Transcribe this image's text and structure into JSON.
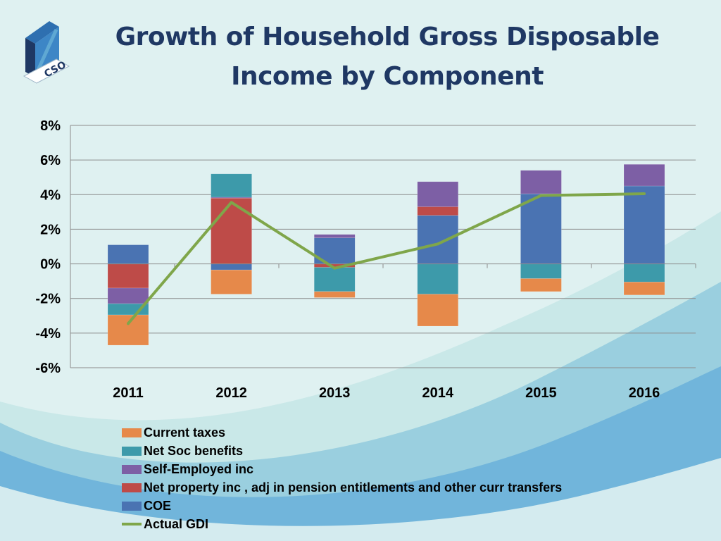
{
  "title_lines": [
    "Growth of Household Gross Disposable",
    "Income by Component"
  ],
  "logo": {
    "text": "CSO",
    "colors": [
      "#1f3864",
      "#2e6fb0",
      "#5fa8d3"
    ]
  },
  "colors": {
    "title": "#1f3864",
    "background": "#dff1f1",
    "gridline": "#8c8c8c"
  },
  "chart_data": {
    "type": "bar",
    "stacked": true,
    "categories": [
      "2011",
      "2012",
      "2013",
      "2014",
      "2015",
      "2016"
    ],
    "ylim": [
      -6,
      8
    ],
    "yticks": [
      8,
      6,
      4,
      2,
      0,
      -2,
      -4,
      -6
    ],
    "ytick_format": "%",
    "grid": true,
    "legend_position": "bottom",
    "series": [
      {
        "name": "COE",
        "color": "#4a73b2",
        "values": [
          1.1,
          -0.35,
          1.5,
          2.8,
          4.05,
          4.5
        ]
      },
      {
        "name": "Net property inc , adj in pension entitlements and other curr transfers",
        "color": "#be4b48",
        "values": [
          -1.4,
          3.8,
          -0.2,
          0.5,
          0.0,
          0.0
        ]
      },
      {
        "name": "Self-Employed inc",
        "color": "#7d5fa5",
        "values": [
          -0.9,
          0.05,
          0.2,
          1.45,
          1.35,
          1.25
        ]
      },
      {
        "name": "Net Soc benefits",
        "color": "#3d9aaa",
        "values": [
          -0.65,
          1.35,
          -1.4,
          -1.75,
          -0.85,
          -1.05
        ]
      },
      {
        "name": "Current taxes",
        "color": "#e6894a",
        "values": [
          -1.75,
          -1.4,
          -0.35,
          -1.85,
          -0.75,
          -0.75
        ]
      }
    ],
    "line_series": {
      "name": "Actual GDI",
      "color": "#7fa64a",
      "values": [
        -3.45,
        3.55,
        -0.25,
        1.15,
        3.95,
        4.05
      ]
    },
    "legend_order": [
      "Current taxes",
      "Net Soc benefits",
      "Self-Employed inc",
      "Net property inc , adj in pension entitlements and other curr transfers",
      "COE",
      "Actual GDI"
    ]
  }
}
